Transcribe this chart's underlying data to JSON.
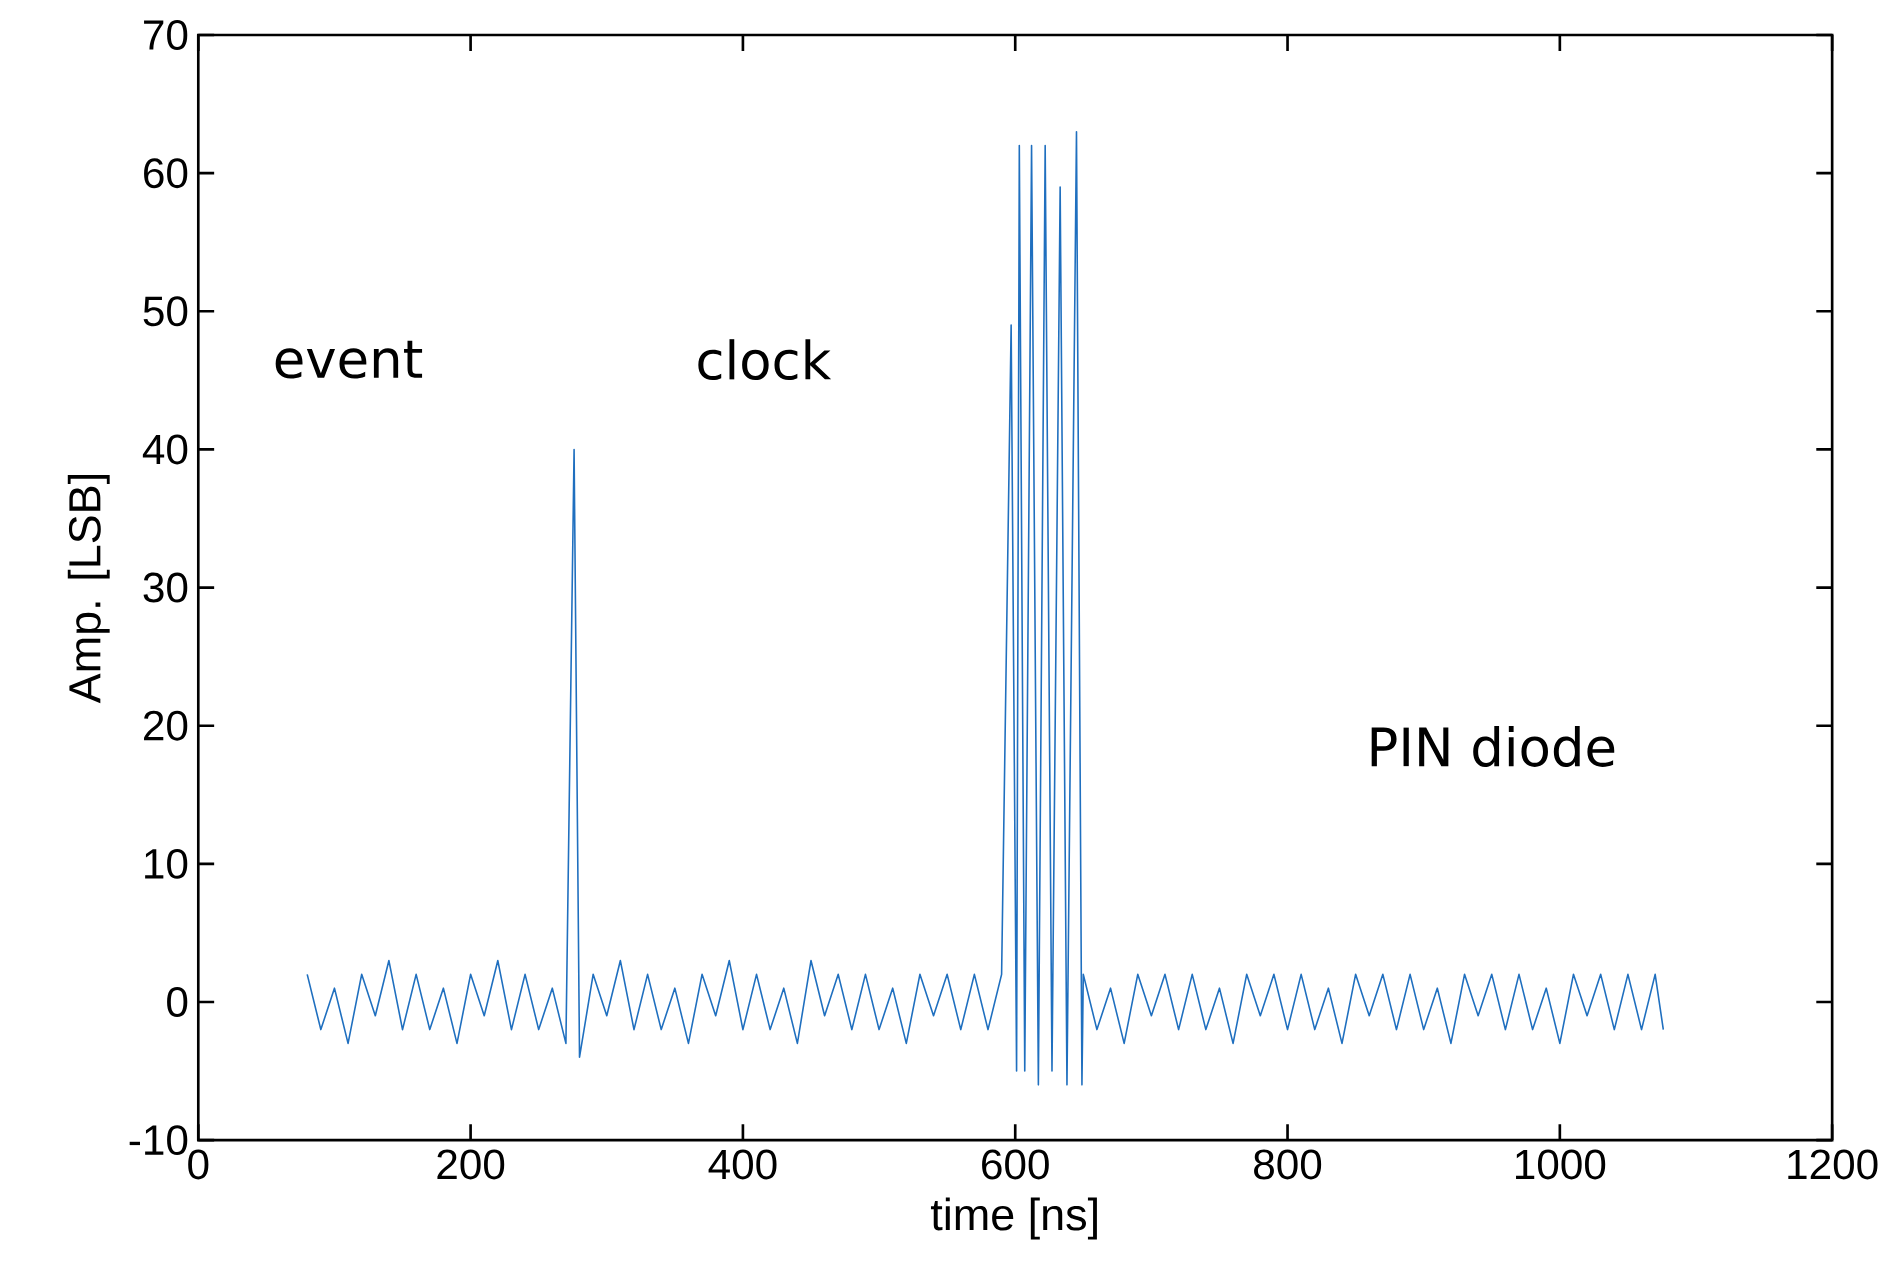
{
  "chart_data": {
    "type": "line",
    "xlabel": "time [ns]",
    "ylabel": "Amp. [LSB]",
    "annotations": [
      "event",
      "clock",
      "PIN diode"
    ],
    "xlim": [
      0,
      1200
    ],
    "xticks": [
      0,
      200,
      400,
      600,
      800,
      1000,
      1200
    ],
    "ylim": [
      -10,
      70
    ],
    "yticks": [
      -10,
      0,
      10,
      20,
      30,
      40,
      50,
      60,
      70
    ],
    "grid": false,
    "line_style": "solid",
    "marker": "none",
    "series": [
      {
        "color": "#1f6fbf",
        "x": [
          80,
          90,
          100,
          110,
          120,
          130,
          140,
          150,
          160,
          170,
          180,
          190,
          200,
          210,
          220,
          230,
          240,
          250,
          260,
          270,
          276,
          280,
          290,
          300,
          310,
          320,
          330,
          340,
          350,
          360,
          370,
          380,
          390,
          400,
          410,
          420,
          430,
          440,
          450,
          460,
          470,
          480,
          490,
          500,
          510,
          520,
          530,
          540,
          550,
          560,
          570,
          580,
          590,
          597,
          601,
          603,
          607,
          612,
          617,
          622,
          627,
          633,
          638,
          645,
          649,
          650,
          660,
          670,
          680,
          690,
          700,
          710,
          720,
          730,
          740,
          750,
          760,
          770,
          780,
          790,
          800,
          810,
          820,
          830,
          840,
          850,
          860,
          870,
          880,
          890,
          900,
          910,
          920,
          930,
          940,
          950,
          960,
          970,
          980,
          990,
          1000,
          1010,
          1020,
          1030,
          1040,
          1050,
          1060,
          1070,
          1076
        ],
        "values": [
          2,
          -2,
          1,
          -3,
          2,
          -1,
          3,
          -2,
          2,
          -2,
          1,
          -3,
          2,
          -1,
          3,
          -2,
          2,
          -2,
          1,
          -3,
          40,
          -4,
          2,
          -1,
          3,
          -2,
          2,
          -2,
          1,
          -3,
          2,
          -1,
          3,
          -2,
          2,
          -2,
          1,
          -3,
          3,
          -1,
          2,
          -2,
          2,
          -2,
          1,
          -3,
          2,
          -1,
          2,
          -2,
          2,
          -2,
          2,
          49,
          -5,
          62,
          -5,
          62,
          -6,
          62,
          -5,
          59,
          -6,
          63,
          -6,
          2,
          -2,
          1,
          -3,
          2,
          -1,
          2,
          -2,
          2,
          -2,
          1,
          -3,
          2,
          -1,
          2,
          -2,
          2,
          -2,
          1,
          -3,
          2,
          -1,
          2,
          -2,
          2,
          -2,
          1,
          -3,
          2,
          -1,
          2,
          -2,
          2,
          -2,
          1,
          -3,
          2,
          -1,
          2,
          -2,
          2,
          -2,
          2,
          -2
        ]
      }
    ]
  }
}
